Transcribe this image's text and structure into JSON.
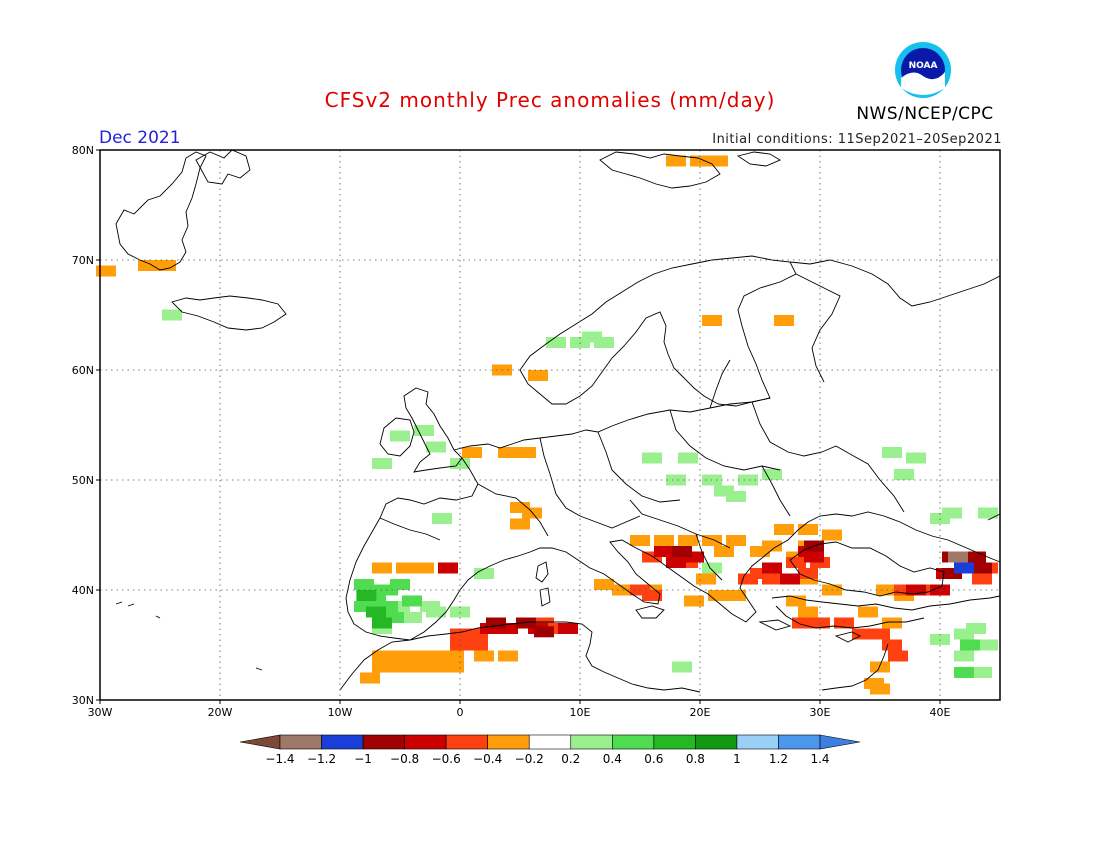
{
  "title": "CFSv2 monthly Prec anomalies (mm/day)",
  "month": "Dec 2021",
  "initial_conditions": "Initial conditions: 11Sep2021–20Sep2021",
  "agency": "NWS/NCEP/CPC",
  "logo_text": "NOAA",
  "map": {
    "lon_range": [
      -30,
      45
    ],
    "lat_range": [
      30,
      80
    ],
    "lat_ticks": [
      {
        "value": 80,
        "label": "80N"
      },
      {
        "value": 70,
        "label": "70N"
      },
      {
        "value": 60,
        "label": "60N"
      },
      {
        "value": 50,
        "label": "50N"
      },
      {
        "value": 40,
        "label": "40N"
      },
      {
        "value": 30,
        "label": "30N"
      }
    ],
    "lon_ticks": [
      {
        "value": -30,
        "label": "30W"
      },
      {
        "value": -20,
        "label": "20W"
      },
      {
        "value": -10,
        "label": "10W"
      },
      {
        "value": 0,
        "label": "0"
      },
      {
        "value": 10,
        "label": "10E"
      },
      {
        "value": 20,
        "label": "20E"
      },
      {
        "value": 30,
        "label": "30E"
      },
      {
        "value": 40,
        "label": "40E"
      }
    ],
    "gridlines": "dotted"
  },
  "colorbar": {
    "colors": [
      "#7b4a36",
      "#a07868",
      "#1a3fd9",
      "#a00000",
      "#cc0000",
      "#ff4010",
      "#ff9e08",
      "#ffffff",
      "#9af08e",
      "#50dc50",
      "#24b824",
      "#119a11",
      "#9ad0f5",
      "#4a98ee",
      "#3b7fe0"
    ],
    "labels": [
      "−1.4",
      "−1.2",
      "−1",
      "−0.8",
      "−0.6",
      "−0.4",
      "−0.2",
      "0.2",
      "0.4",
      "0.6",
      "0.8",
      "1",
      "1.2",
      "1.4"
    ]
  },
  "anomaly_regions": [
    {
      "color": "#ff9e08",
      "cells": [
        [
          -29.5,
          69
        ],
        [
          -26,
          69.5
        ],
        [
          -24.5,
          69.5
        ],
        [
          18,
          79
        ],
        [
          20,
          79
        ],
        [
          21.5,
          79
        ],
        [
          21,
          64.5
        ],
        [
          27,
          64.5
        ],
        [
          6.5,
          59.5
        ],
        [
          3.5,
          60
        ],
        [
          1,
          52.5
        ],
        [
          4,
          52.5
        ],
        [
          5.5,
          52.5
        ],
        [
          5,
          47.5
        ],
        [
          6,
          47
        ],
        [
          5,
          46
        ],
        [
          -6.5,
          42
        ],
        [
          -4.5,
          42
        ],
        [
          -3,
          42
        ],
        [
          -6.5,
          34
        ],
        [
          -5,
          34
        ],
        [
          -3.5,
          34
        ],
        [
          -2,
          34
        ],
        [
          -0.5,
          34
        ],
        [
          2,
          34
        ],
        [
          4,
          34
        ],
        [
          -6.5,
          33
        ],
        [
          -5,
          33
        ],
        [
          -3.5,
          33
        ],
        [
          -2,
          33
        ],
        [
          -0.5,
          33
        ],
        [
          -7.5,
          32
        ],
        [
          15,
          44.5
        ],
        [
          17,
          44.5
        ],
        [
          19,
          44.5
        ],
        [
          21,
          44.5
        ],
        [
          23,
          44.5
        ],
        [
          22,
          43.5
        ],
        [
          25,
          43.5
        ],
        [
          27,
          45.5
        ],
        [
          29,
          45.5
        ],
        [
          31,
          45
        ],
        [
          29,
          44
        ],
        [
          26,
          44
        ],
        [
          28,
          43
        ],
        [
          12,
          40.5
        ],
        [
          13.5,
          40
        ],
        [
          16,
          40
        ],
        [
          20.5,
          41
        ],
        [
          21.5,
          39.5
        ],
        [
          23,
          39.5
        ],
        [
          19.5,
          39
        ],
        [
          29,
          41
        ],
        [
          31,
          40
        ],
        [
          28,
          39
        ],
        [
          29,
          38
        ],
        [
          35.5,
          40
        ],
        [
          37,
          39.5
        ],
        [
          34,
          38
        ],
        [
          36,
          37
        ],
        [
          35,
          33
        ],
        [
          34.5,
          31.5
        ],
        [
          35,
          31
        ]
      ]
    },
    {
      "color": "#ff4010",
      "cells": [
        [
          8,
          36.5
        ],
        [
          7,
          37
        ],
        [
          0,
          36
        ],
        [
          1.5,
          36
        ],
        [
          0,
          35
        ],
        [
          1.5,
          35
        ],
        [
          15,
          40
        ],
        [
          16,
          39.5
        ],
        [
          16,
          43
        ],
        [
          19,
          42.5
        ],
        [
          24,
          41
        ],
        [
          26,
          41
        ],
        [
          25,
          41.5
        ],
        [
          28,
          42.5
        ],
        [
          30,
          42.5
        ],
        [
          29,
          41.5
        ],
        [
          28.5,
          37
        ],
        [
          30,
          37
        ],
        [
          32,
          37
        ],
        [
          33.5,
          36
        ],
        [
          35,
          36
        ],
        [
          36,
          35
        ],
        [
          36.5,
          34
        ],
        [
          37,
          40
        ],
        [
          39,
          40
        ],
        [
          44,
          42
        ],
        [
          43.5,
          41
        ]
      ]
    },
    {
      "color": "#cc0000",
      "cells": [
        [
          4,
          36.5
        ],
        [
          6.5,
          36.5
        ],
        [
          9,
          36.5
        ],
        [
          2.5,
          36.5
        ],
        [
          17,
          43.5
        ],
        [
          18,
          42.5
        ],
        [
          19.5,
          43
        ],
        [
          29.5,
          43
        ],
        [
          27.5,
          41
        ],
        [
          26,
          42
        ],
        [
          29,
          43.5
        ],
        [
          40,
          40
        ],
        [
          38,
          40
        ],
        [
          43,
          42
        ],
        [
          41.5,
          43
        ],
        [
          -1,
          42
        ],
        [
          40.5,
          41.5
        ],
        [
          42,
          42.5
        ]
      ]
    },
    {
      "color": "#a00000",
      "cells": [
        [
          3,
          37
        ],
        [
          5.5,
          37
        ],
        [
          7,
          36.2
        ],
        [
          18.5,
          43.5
        ],
        [
          29.5,
          44
        ],
        [
          41,
          43
        ],
        [
          41,
          41.5
        ],
        [
          43,
          43
        ],
        [
          43.5,
          42
        ]
      ]
    },
    {
      "color": "#a07868",
      "cells": [
        [
          41.5,
          43
        ]
      ]
    },
    {
      "color": "#1a3fd9",
      "cells": [
        [
          42,
          42
        ]
      ]
    },
    {
      "color": "#9af08e",
      "cells": [
        [
          -24,
          65
        ],
        [
          8,
          62.5
        ],
        [
          10,
          62.5
        ],
        [
          12,
          62.5
        ],
        [
          11,
          63
        ],
        [
          -5,
          54
        ],
        [
          -3,
          54.5
        ],
        [
          -2,
          53
        ],
        [
          0,
          51.5
        ],
        [
          -6.5,
          51.5
        ],
        [
          16,
          52
        ],
        [
          19,
          52
        ],
        [
          18,
          50
        ],
        [
          21,
          50
        ],
        [
          24,
          50
        ],
        [
          26,
          50.5
        ],
        [
          22,
          49
        ],
        [
          23,
          48.5
        ],
        [
          36,
          52.5
        ],
        [
          38,
          52
        ],
        [
          -1.5,
          46.5
        ],
        [
          -5,
          38.5
        ],
        [
          -2.5,
          38.5
        ],
        [
          0,
          38
        ],
        [
          -2,
          38
        ],
        [
          -4,
          37.5
        ],
        [
          -6.5,
          36.5
        ],
        [
          2,
          41.5
        ],
        [
          21,
          42
        ],
        [
          18.5,
          33
        ],
        [
          37,
          50.5
        ],
        [
          40,
          46.5
        ],
        [
          41,
          47
        ],
        [
          44,
          47
        ],
        [
          40,
          35.5
        ],
        [
          42,
          36
        ],
        [
          43,
          36.5
        ],
        [
          44,
          35
        ],
        [
          42,
          34
        ],
        [
          43.5,
          32.5
        ]
      ]
    },
    {
      "color": "#50dc50",
      "cells": [
        [
          -8,
          40.5
        ],
        [
          -7,
          40
        ],
        [
          -6,
          40
        ],
        [
          -5,
          40.5
        ],
        [
          -7,
          39
        ],
        [
          -6,
          38.5
        ],
        [
          -5.5,
          37.5
        ],
        [
          -8,
          38.5
        ],
        [
          -4,
          39
        ],
        [
          42.5,
          35
        ],
        [
          42,
          32.5
        ]
      ]
    },
    {
      "color": "#24b824",
      "cells": [
        [
          -7.8,
          39.5
        ],
        [
          -7,
          38
        ],
        [
          -6.5,
          37
        ]
      ]
    }
  ]
}
